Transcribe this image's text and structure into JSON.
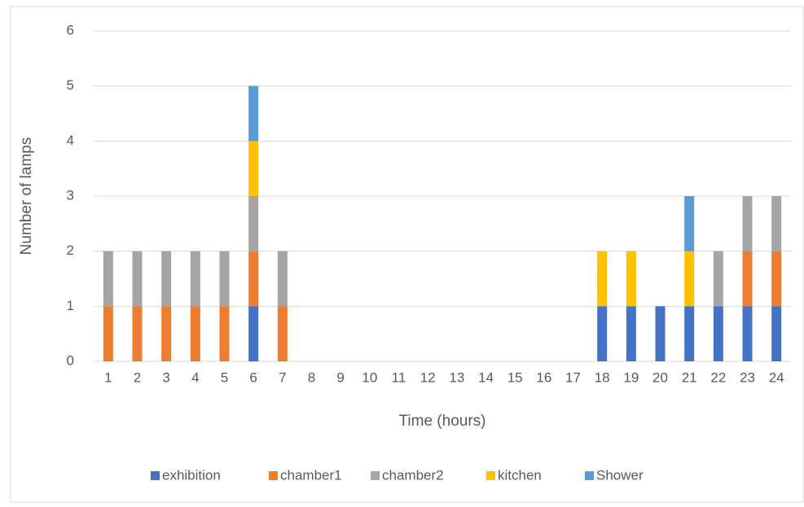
{
  "chart_data": {
    "type": "stacked_bar",
    "x_label": "Time (hours)",
    "y_label": "Number of lamps",
    "categories": [
      "1",
      "2",
      "3",
      "4",
      "5",
      "6",
      "7",
      "8",
      "9",
      "10",
      "11",
      "12",
      "13",
      "14",
      "15",
      "16",
      "17",
      "18",
      "19",
      "20",
      "21",
      "22",
      "23",
      "24"
    ],
    "series": [
      {
        "name": "exhibition",
        "color": "#4472c4",
        "values": [
          0,
          0,
          0,
          0,
          0,
          1,
          0,
          0,
          0,
          0,
          0,
          0,
          0,
          0,
          0,
          0,
          0,
          1,
          1,
          1,
          1,
          1,
          1,
          1
        ]
      },
      {
        "name": "chamber1",
        "color": "#ed7d31",
        "values": [
          1,
          1,
          1,
          1,
          1,
          1,
          1,
          0,
          0,
          0,
          0,
          0,
          0,
          0,
          0,
          0,
          0,
          0,
          0,
          0,
          0,
          0,
          1,
          1
        ]
      },
      {
        "name": "chamber2",
        "color": "#a5a5a5",
        "values": [
          1,
          1,
          1,
          1,
          1,
          1,
          1,
          0,
          0,
          0,
          0,
          0,
          0,
          0,
          0,
          0,
          0,
          0,
          0,
          0,
          0,
          1,
          1,
          1
        ]
      },
      {
        "name": "kitchen",
        "color": "#ffc000",
        "values": [
          0,
          0,
          0,
          0,
          0,
          1,
          0,
          0,
          0,
          0,
          0,
          0,
          0,
          0,
          0,
          0,
          0,
          1,
          1,
          0,
          1,
          0,
          0,
          0
        ]
      },
      {
        "name": "Shower",
        "color": "#5b9bd5",
        "values": [
          0,
          0,
          0,
          0,
          0,
          1,
          0,
          0,
          0,
          0,
          0,
          0,
          0,
          0,
          0,
          0,
          0,
          0,
          0,
          0,
          1,
          0,
          0,
          0
        ]
      }
    ],
    "ylim": [
      0,
      6
    ],
    "yticks": [
      0,
      1,
      2,
      3,
      4,
      5,
      6
    ],
    "grid": true,
    "legend": "bottom"
  }
}
